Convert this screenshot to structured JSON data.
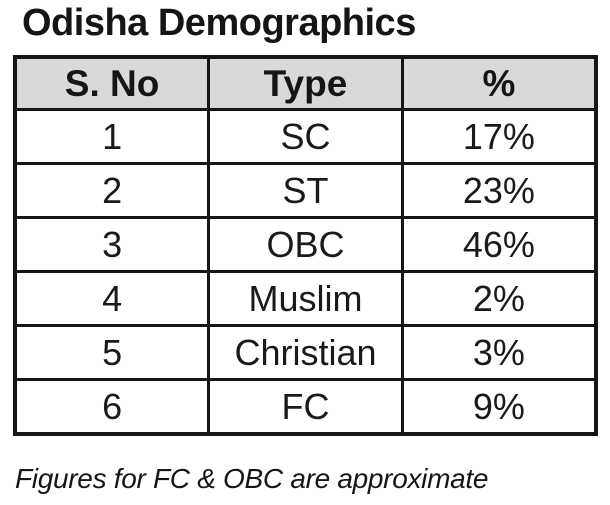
{
  "title": "Odisha Demographics",
  "footnote": "Figures for FC & OBC are approximate",
  "colors": {
    "header_bg": "#d9d9d9",
    "border": "#161616",
    "text": "#1a1a1a",
    "background": "#ffffff"
  },
  "chart_data": {
    "type": "table",
    "title": "Odisha Demographics",
    "columns": [
      "S. No",
      "Type",
      "%"
    ],
    "rows": [
      [
        "1",
        "SC",
        "17%"
      ],
      [
        "2",
        "ST",
        "23%"
      ],
      [
        "3",
        "OBC",
        "46%"
      ],
      [
        "4",
        "Muslim",
        "2%"
      ],
      [
        "5",
        "Christian",
        "3%"
      ],
      [
        "6",
        "FC",
        "9%"
      ]
    ],
    "values_numeric": {
      "SC": 17,
      "ST": 23,
      "OBC": 46,
      "Muslim": 2,
      "Christian": 3,
      "FC": 9
    },
    "footnote": "Figures for FC & OBC are approximate",
    "layout": {
      "header_background": "#d9d9d9",
      "grid": "on",
      "column_alignment": "center"
    }
  }
}
